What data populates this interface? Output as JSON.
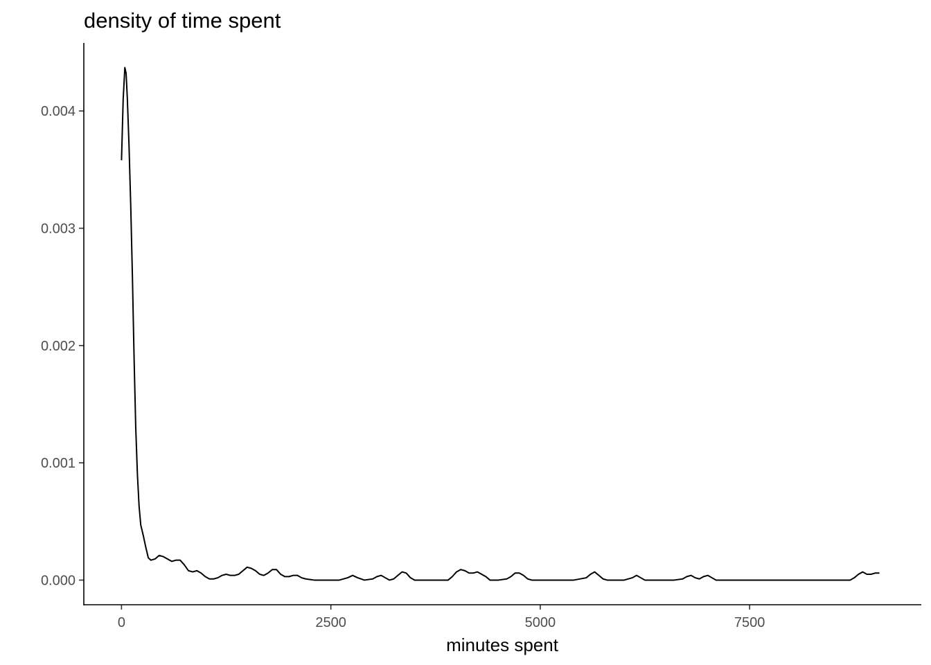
{
  "chart_data": {
    "type": "line",
    "title": "density of time spent",
    "xlabel": "minutes spent",
    "ylabel": "",
    "xlim": [
      -450,
      9550
    ],
    "ylim": [
      -0.00021,
      0.00458
    ],
    "xticks": [
      0,
      2500,
      5000,
      7500
    ],
    "xtick_labels": [
      "0",
      "2500",
      "5000",
      "7500"
    ],
    "yticks": [
      0.0,
      0.001,
      0.002,
      0.003,
      0.004
    ],
    "ytick_labels": [
      "0.000",
      "0.001",
      "0.002",
      "0.003",
      "0.004"
    ],
    "grid": false,
    "legend": "none",
    "series": [
      {
        "x": [
          0,
          20,
          40,
          55,
          70,
          90,
          110,
          130,
          150,
          170,
          190,
          210,
          230,
          260,
          290,
          320,
          350,
          400,
          450,
          500,
          550,
          600,
          650,
          700,
          750,
          800,
          850,
          900,
          950,
          1000,
          1050,
          1100,
          1150,
          1200,
          1250,
          1300,
          1350,
          1400,
          1450,
          1500,
          1550,
          1600,
          1650,
          1700,
          1750,
          1800,
          1850,
          1900,
          1950,
          2000,
          2050,
          2100,
          2150,
          2200,
          2300,
          2400,
          2500,
          2600,
          2700,
          2760,
          2820,
          2900,
          3000,
          3050,
          3100,
          3150,
          3200,
          3250,
          3300,
          3350,
          3400,
          3450,
          3500,
          3600,
          3700,
          3800,
          3900,
          3950,
          4000,
          4050,
          4100,
          4150,
          4200,
          4250,
          4300,
          4350,
          4400,
          4450,
          4500,
          4600,
          4650,
          4700,
          4750,
          4800,
          4850,
          4900,
          5000,
          5200,
          5400,
          5550,
          5600,
          5650,
          5700,
          5750,
          5800,
          5900,
          6000,
          6100,
          6150,
          6200,
          6250,
          6300,
          6400,
          6500,
          6600,
          6700,
          6750,
          6800,
          6850,
          6900,
          6950,
          7000,
          7050,
          7100,
          7200,
          7500,
          7800,
          8100,
          8400,
          8700,
          8750,
          8800,
          8850,
          8900,
          8950,
          9000,
          9050
        ],
        "values": [
          0.00358,
          0.0041,
          0.00437,
          0.00432,
          0.0041,
          0.0037,
          0.0032,
          0.0026,
          0.0019,
          0.0013,
          0.0009,
          0.00063,
          0.00047,
          0.00038,
          0.00028,
          0.00019,
          0.00017,
          0.00018,
          0.00021,
          0.0002,
          0.00018,
          0.00016,
          0.00017,
          0.00017,
          0.00013,
          8e-05,
          7e-05,
          8e-05,
          6e-05,
          3e-05,
          1e-05,
          1e-05,
          2e-05,
          4e-05,
          5e-05,
          4e-05,
          4e-05,
          5e-05,
          8e-05,
          0.00011,
          0.0001,
          8e-05,
          5e-05,
          4e-05,
          6e-05,
          9e-05,
          9e-05,
          5e-05,
          3e-05,
          3e-05,
          4e-05,
          4e-05,
          2e-05,
          1e-05,
          0.0,
          0.0,
          0.0,
          0.0,
          2e-05,
          4e-05,
          2e-05,
          0.0,
          1e-05,
          3e-05,
          4e-05,
          2e-05,
          0.0,
          1e-05,
          4e-05,
          7e-05,
          6e-05,
          2e-05,
          0.0,
          0.0,
          0.0,
          0.0,
          0.0,
          3e-05,
          7e-05,
          9e-05,
          8e-05,
          6e-05,
          6e-05,
          7e-05,
          5e-05,
          3e-05,
          0.0,
          0.0,
          0.0,
          1e-05,
          3e-05,
          6e-05,
          6e-05,
          4e-05,
          1e-05,
          0.0,
          0.0,
          0.0,
          0.0,
          2e-05,
          5e-05,
          7e-05,
          4e-05,
          1e-05,
          0.0,
          0.0,
          0.0,
          2e-05,
          4e-05,
          2e-05,
          0.0,
          0.0,
          0.0,
          0.0,
          0.0,
          1e-05,
          3e-05,
          4e-05,
          2e-05,
          1e-05,
          3e-05,
          4e-05,
          2e-05,
          0.0,
          0.0,
          0.0,
          0.0,
          0.0,
          0.0,
          0.0,
          2e-05,
          5e-05,
          7e-05,
          5e-05,
          5e-05,
          6e-05,
          6e-05
        ]
      }
    ]
  }
}
